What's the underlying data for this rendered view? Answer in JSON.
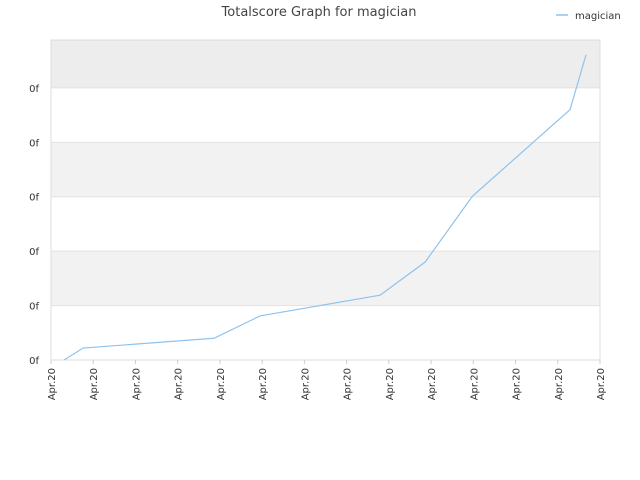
{
  "chart_data": {
    "type": "line",
    "title": "Totalscore Graph for magician",
    "x": [
      0.31,
      0.76,
      3.86,
      4.95,
      7.79,
      8.86,
      9.98,
      12.29,
      12.67
    ],
    "series": [
      {
        "name": "magician",
        "color": "#8ec3ee",
        "values": [
          0,
          0.22,
          0.4,
          0.81,
          1.19,
          1.8,
          3.01,
          4.6,
          5.61
        ]
      }
    ],
    "xlim": [
      0,
      13
    ],
    "xticks": [
      {
        "value": 0,
        "label": "Apr.20"
      },
      {
        "value": 1,
        "label": "Apr.20"
      },
      {
        "value": 2,
        "label": "Apr.20"
      },
      {
        "value": 3,
        "label": "Apr.20"
      },
      {
        "value": 4,
        "label": "Apr.20"
      },
      {
        "value": 5,
        "label": "Apr.20"
      },
      {
        "value": 6,
        "label": "Apr.20"
      },
      {
        "value": 7,
        "label": "Apr.20"
      },
      {
        "value": 8,
        "label": "Apr.20"
      },
      {
        "value": 9,
        "label": "Apr.20"
      },
      {
        "value": 10,
        "label": "Apr.20"
      },
      {
        "value": 11,
        "label": "Apr.20"
      },
      {
        "value": 12,
        "label": "Apr.20"
      },
      {
        "value": 13,
        "label": "Apr.20"
      }
    ],
    "ylim": [
      0,
      5.88
    ],
    "yticks": [
      {
        "value": 0,
        "label": "0f"
      },
      {
        "value": 1,
        "label": "0f"
      },
      {
        "value": 2,
        "label": "0f"
      },
      {
        "value": 3,
        "label": "0f"
      },
      {
        "value": 4,
        "label": "0f"
      },
      {
        "value": 5,
        "label": "0f"
      }
    ],
    "grid": true,
    "legend": "top-right"
  }
}
